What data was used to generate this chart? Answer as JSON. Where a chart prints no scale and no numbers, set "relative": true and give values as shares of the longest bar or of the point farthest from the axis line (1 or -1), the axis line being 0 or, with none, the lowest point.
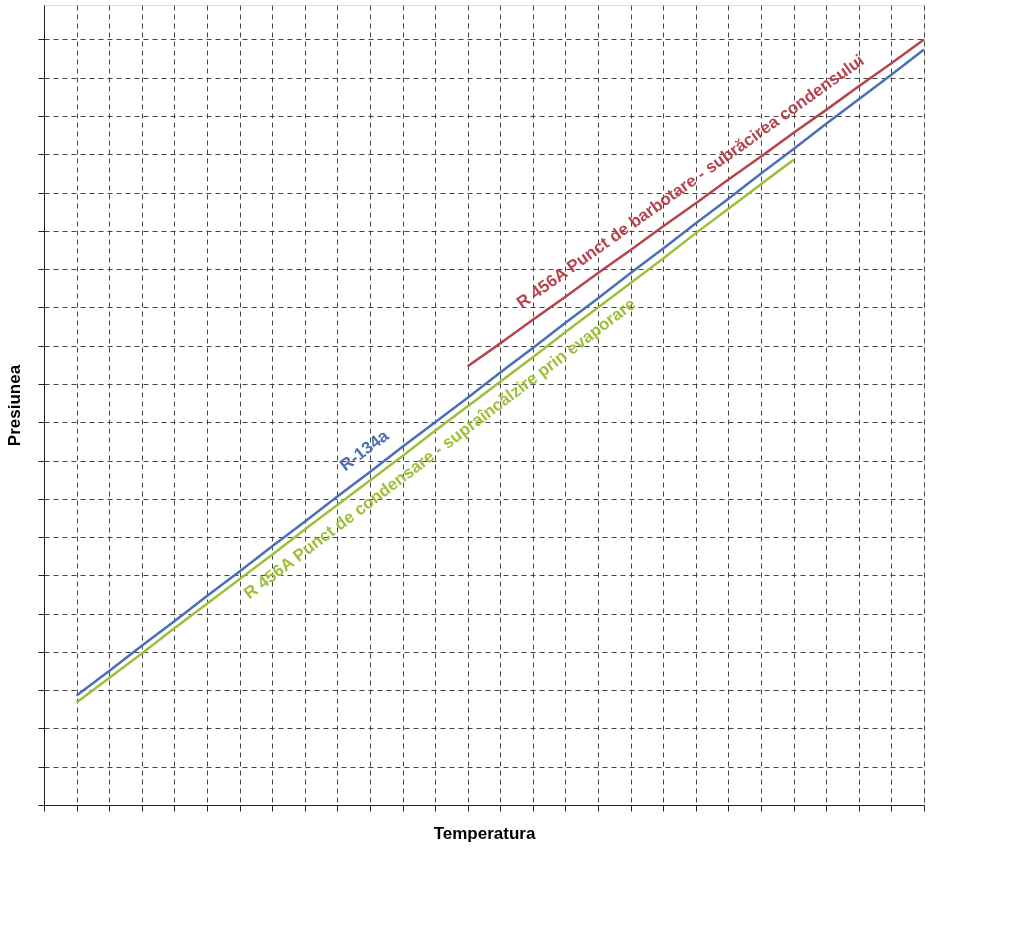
{
  "chart_data": {
    "type": "line",
    "relative": true,
    "xlabel": "Temperatura",
    "ylabel": "Presiunea",
    "grid": true,
    "tick_labels": false,
    "categories": [
      null,
      null,
      null,
      null,
      null,
      null,
      null,
      null,
      null,
      null,
      null,
      null,
      null,
      null,
      null,
      null,
      null,
      null,
      null,
      null,
      null,
      null,
      null,
      null,
      null,
      null,
      null,
      null
    ],
    "series": [
      {
        "name": "R-134a",
        "color": "#4a6fb5",
        "values": [
          null,
          0.143,
          0.175,
          0.208,
          0.24,
          0.273,
          0.305,
          0.338,
          0.37,
          0.403,
          0.435,
          0.468,
          0.5,
          0.532,
          0.565,
          0.597,
          0.63,
          0.662,
          0.695,
          0.727,
          0.76,
          0.792,
          0.825,
          0.857,
          0.89,
          0.922,
          0.954,
          0.987
        ]
      },
      {
        "name": "R 456A Punct de barbotare - subrăcirea condensului",
        "color": "#b5444f",
        "values": [
          null,
          null,
          null,
          null,
          null,
          null,
          null,
          null,
          null,
          null,
          null,
          null,
          null,
          0.573,
          0.603,
          0.634,
          0.664,
          0.695,
          0.725,
          0.756,
          0.786,
          0.817,
          0.847,
          0.878,
          0.908,
          0.939,
          0.969,
          1.0
        ]
      },
      {
        "name": "R 456A Punct de condensare - supraîncălzire prin evaporare",
        "color": "#9fbf3a",
        "values": [
          null,
          0.134,
          0.166,
          0.198,
          0.231,
          0.263,
          0.295,
          0.327,
          0.36,
          0.392,
          0.424,
          0.456,
          0.489,
          0.521,
          0.553,
          0.585,
          0.618,
          0.65,
          0.682,
          0.714,
          0.747,
          0.779,
          0.811,
          0.843,
          null,
          null,
          null,
          null
        ]
      }
    ]
  }
}
